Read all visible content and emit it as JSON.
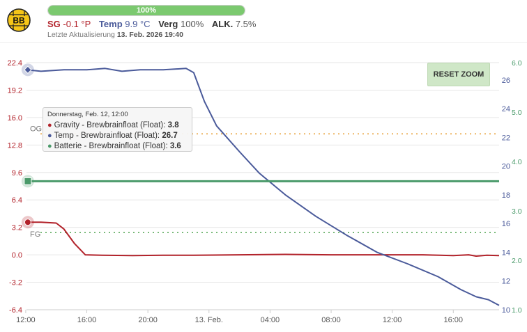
{
  "header": {
    "logo_text": "BB",
    "progress": {
      "label": "100%",
      "fraction": 1.0
    },
    "readings": [
      {
        "label": "SG",
        "value": "-0.1 °P",
        "key": "sg"
      },
      {
        "label": "Temp",
        "value": "9.9 °C",
        "key": "temp"
      },
      {
        "label": "Verg",
        "value": "100%",
        "key": "verg"
      },
      {
        "label": "ALK.",
        "value": "7.5%",
        "key": "alk"
      }
    ],
    "updated_label": "Letzte Aktualisierung",
    "updated_value": "13. Feb. 2026 19:40"
  },
  "chart": {
    "reset_zoom_label": "RESET ZOOM",
    "og_label": "OG",
    "fg_label": "FG",
    "tooltip": {
      "title": "Donnerstag, Feb. 12, 12:00",
      "rows": [
        {
          "label": "Gravity - Brewbrainfloat (Float):",
          "value": "3.8",
          "color": "#b2222a"
        },
        {
          "label": "Temp - Brewbrainfloat (Float):",
          "value": "26.7",
          "color": "#4a5a9a"
        },
        {
          "label": "Batterie - Brewbrainfloat (Float):",
          "value": "3.6",
          "color": "#4a9a6a"
        }
      ]
    }
  },
  "chart_data": {
    "type": "line",
    "x_ticks": [
      "12:00",
      "16:00",
      "20:00",
      "13. Feb.",
      "04:00",
      "08:00",
      "12:00",
      "16:00"
    ],
    "x_tick_hours": [
      12,
      16,
      20,
      24,
      28,
      32,
      36,
      40
    ],
    "x_range_hours": [
      12.05,
      43.0
    ],
    "left_axis": {
      "ticks": [
        "22.4",
        "19.2",
        "16.0",
        "12.8",
        "9.6",
        "6.4",
        "3.2",
        "0.0",
        "-3.2",
        "-6.4"
      ],
      "ylim": [
        -6.4,
        22.4
      ],
      "color": "#b2222a"
    },
    "temp_axis": {
      "ticks": [
        "26",
        "24",
        "22",
        "20",
        "18",
        "16",
        "14",
        "12",
        "10"
      ],
      "ylim": [
        10,
        27.2
      ],
      "color": "#4a5a9a"
    },
    "battery_axis": {
      "ticks": [
        "6.0",
        "5.0",
        "4.0",
        "3.0",
        "2.0",
        "1.0"
      ],
      "ylim": [
        1.0,
        6.0
      ],
      "color": "#4a9a6a"
    },
    "og_value": 14.1,
    "fg_value": 2.6,
    "series": [
      {
        "name": "Gravity - Brewbrainfloat (Float)",
        "axis": "left",
        "color": "#b2222a",
        "points": [
          [
            12.05,
            3.8
          ],
          [
            13,
            3.8
          ],
          [
            14,
            3.7
          ],
          [
            14.5,
            3.0
          ],
          [
            15.2,
            1.3
          ],
          [
            15.9,
            0.0
          ],
          [
            17,
            -0.05
          ],
          [
            19,
            -0.1
          ],
          [
            21,
            -0.05
          ],
          [
            23,
            -0.05
          ],
          [
            26,
            0.0
          ],
          [
            29,
            0.05
          ],
          [
            32,
            0.0
          ],
          [
            35,
            0.0
          ],
          [
            38,
            0.0
          ],
          [
            40,
            -0.1
          ],
          [
            41,
            0.0
          ],
          [
            41.5,
            -0.15
          ],
          [
            42.2,
            -0.05
          ],
          [
            43,
            -0.1
          ]
        ]
      },
      {
        "name": "Temp - Brewbrainfloat (Float)",
        "axis": "temp",
        "color": "#4a5a9a",
        "points": [
          [
            12.05,
            26.7
          ],
          [
            13,
            26.6
          ],
          [
            14.5,
            26.7
          ],
          [
            16,
            26.7
          ],
          [
            17.2,
            26.8
          ],
          [
            18.3,
            26.6
          ],
          [
            19.5,
            26.7
          ],
          [
            21,
            26.7
          ],
          [
            22.5,
            26.8
          ],
          [
            23,
            26.5
          ],
          [
            23.7,
            24.5
          ],
          [
            24.5,
            22.8
          ],
          [
            26,
            21.0
          ],
          [
            27.3,
            19.5
          ],
          [
            29,
            18.0
          ],
          [
            31,
            16.5
          ],
          [
            33,
            15.2
          ],
          [
            35,
            14.0
          ],
          [
            37,
            13.2
          ],
          [
            39,
            12.3
          ],
          [
            40.5,
            11.4
          ],
          [
            41.5,
            10.9
          ],
          [
            42.3,
            10.7
          ],
          [
            43,
            10.3
          ]
        ]
      },
      {
        "name": "Batterie - Brewbrainfloat (Float)",
        "axis": "battery",
        "color": "#4a9a6a",
        "points": [
          [
            12.05,
            3.6
          ],
          [
            43,
            3.6
          ]
        ]
      }
    ],
    "highlight_x": 12.0
  }
}
